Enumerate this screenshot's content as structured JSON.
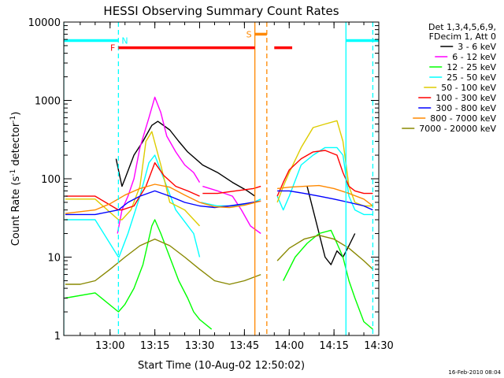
{
  "chart_data": {
    "type": "line",
    "title": "HESSI Observing Summary Count Rates",
    "xlabel": "Start Time (10-Aug-02 12:50:02)",
    "ylabel_main": "Count Rate (s",
    "ylabel_sup1": "-1",
    "ylabel_mid": " detector",
    "ylabel_sup2": "-1",
    "ylabel_end": ")",
    "y_scale": "log",
    "ylim": [
      1,
      10000
    ],
    "xlim_minutes": [
      -5.5,
      100
    ],
    "x_ticks": [
      {
        "label": "13:00",
        "minutes": 10
      },
      {
        "label": "13:15",
        "minutes": 25
      },
      {
        "label": "13:30",
        "minutes": 40
      },
      {
        "label": "13:45",
        "minutes": 55
      },
      {
        "label": "14:00",
        "minutes": 70
      },
      {
        "label": "14:15",
        "minutes": 85
      },
      {
        "label": "14:30",
        "minutes": 100
      }
    ],
    "y_ticks": [
      {
        "label": "1",
        "value": 1
      },
      {
        "label": "10",
        "value": 10
      },
      {
        "label": "100",
        "value": 100
      },
      {
        "label": "1000",
        "value": 1000
      },
      {
        "label": "10000",
        "value": 10000
      }
    ],
    "legend": {
      "placement": "right",
      "header1": "Det 1,3,4,5,6,9,",
      "header2": "FDecim 1, Att 0"
    },
    "series": [
      {
        "name": "3 - 6 keV",
        "color": "#000000",
        "x": [
          12,
          13,
          14,
          15,
          18,
          21,
          24,
          26,
          30,
          33,
          36,
          41,
          46,
          51,
          56,
          58.5
        ],
        "y": [
          180,
          120,
          80,
          100,
          200,
          300,
          480,
          540,
          420,
          300,
          220,
          150,
          120,
          90,
          70,
          60
        ]
      },
      {
        "name": "3 - 6 keV",
        "color": "#000000",
        "x": [
          76,
          78,
          80,
          82,
          84,
          86,
          88,
          90,
          92
        ],
        "y": [
          80,
          40,
          20,
          10,
          8,
          12,
          10,
          14,
          20
        ]
      },
      {
        "name": "6 - 12 keV",
        "color": "#ff00ff",
        "x": [
          12.5,
          14,
          16,
          18,
          20,
          23,
          25,
          27,
          29,
          32,
          35,
          38,
          40
        ],
        "y": [
          20,
          40,
          60,
          100,
          250,
          600,
          1100,
          700,
          350,
          220,
          150,
          120,
          90
        ]
      },
      {
        "name": "6 - 12 keV",
        "color": "#ff00ff",
        "x": [
          41,
          46,
          51,
          54,
          57,
          60.5
        ],
        "y": [
          80,
          70,
          60,
          40,
          25,
          20
        ]
      },
      {
        "name": "12 - 25 keV",
        "color": "#00ff00",
        "x": [
          -5,
          5,
          12.8,
          15,
          18,
          21,
          24,
          25,
          27,
          30,
          33,
          36,
          38,
          40,
          44
        ],
        "y": [
          3,
          3.5,
          2,
          2.5,
          4,
          8,
          25,
          30,
          20,
          10,
          5,
          3,
          2,
          1.6,
          1.2
        ]
      },
      {
        "name": "12 - 25 keV",
        "color": "#00ff00",
        "x": [
          68,
          72,
          76,
          80,
          84,
          86,
          88,
          90,
          92,
          95,
          98
        ],
        "y": [
          5,
          10,
          15,
          20,
          22,
          15,
          10,
          5,
          3,
          1.5,
          1.2
        ]
      },
      {
        "name": "25 - 50 keV",
        "color": "#00ffff",
        "x": [
          -5,
          5,
          12.8,
          13,
          16,
          20,
          23,
          25,
          28,
          32,
          38,
          40
        ],
        "y": [
          30,
          30,
          10,
          10,
          20,
          60,
          160,
          200,
          100,
          40,
          20,
          10
        ]
      },
      {
        "name": "25 - 50 keV",
        "color": "#00ffff",
        "x": [
          40.5,
          46,
          52,
          58,
          60.5
        ],
        "y": [
          50,
          45,
          45,
          50,
          55
        ]
      },
      {
        "name": "25 - 50 keV",
        "color": "#00ffff",
        "x": [
          66,
          68,
          70,
          74,
          78,
          82,
          86,
          88,
          90,
          92,
          95,
          98
        ],
        "y": [
          60,
          40,
          60,
          150,
          200,
          250,
          250,
          200,
          60,
          40,
          35,
          35
        ]
      },
      {
        "name": "50 - 100 keV",
        "color": "#ddcc00",
        "x": [
          -5,
          5,
          12.8,
          14,
          17,
          20,
          22,
          24,
          27,
          30,
          35,
          40
        ],
        "y": [
          55,
          55,
          30,
          30,
          40,
          80,
          300,
          400,
          150,
          50,
          40,
          25
        ]
      },
      {
        "name": "50 - 100 keV",
        "color": "#ddcc00",
        "x": [
          66,
          68,
          70,
          74,
          78,
          82,
          86,
          88,
          90,
          92,
          95,
          98
        ],
        "y": [
          50,
          80,
          120,
          250,
          450,
          500,
          550,
          300,
          80,
          50,
          45,
          45
        ]
      },
      {
        "name": "100 - 300 keV",
        "color": "#ff0000",
        "x": [
          -5,
          5,
          12.8,
          14,
          18,
          22,
          25,
          28,
          32,
          36,
          40
        ],
        "y": [
          60,
          60,
          40,
          40,
          45,
          80,
          160,
          110,
          80,
          70,
          60
        ]
      },
      {
        "name": "100 - 300 keV",
        "color": "#ff0000",
        "x": [
          41,
          46,
          52,
          58,
          60.5
        ],
        "y": [
          65,
          65,
          70,
          75,
          80
        ]
      },
      {
        "name": "100 - 300 keV",
        "color": "#ff0000",
        "x": [
          66,
          68,
          70,
          74,
          78,
          82,
          86,
          88,
          90,
          92,
          95,
          98
        ],
        "y": [
          60,
          90,
          130,
          180,
          220,
          230,
          200,
          120,
          80,
          70,
          65,
          65
        ]
      },
      {
        "name": "300 - 800 keV",
        "color": "#0000ff",
        "x": [
          -5,
          5,
          12.8,
          16,
          20,
          25,
          30,
          35,
          40,
          45,
          50,
          55,
          60.5
        ],
        "y": [
          35,
          35,
          40,
          50,
          60,
          70,
          60,
          50,
          45,
          43,
          45,
          48,
          52
        ]
      },
      {
        "name": "300 - 800 keV",
        "color": "#0000ff",
        "x": [
          66,
          70,
          75,
          80,
          85,
          90,
          95,
          98
        ],
        "y": [
          70,
          70,
          65,
          60,
          55,
          50,
          45,
          40
        ]
      },
      {
        "name": "800 - 7000 keV",
        "color": "#ff8800",
        "x": [
          -5,
          0,
          5,
          10,
          15,
          20,
          25,
          30,
          35,
          40,
          45,
          50,
          55,
          60.5
        ],
        "y": [
          36,
          38,
          40,
          48,
          62,
          75,
          85,
          78,
          62,
          50,
          44,
          43,
          46,
          52
        ]
      },
      {
        "name": "800 - 7000 keV",
        "color": "#ff8800",
        "x": [
          66,
          70,
          75,
          80,
          85,
          90,
          95,
          98
        ],
        "y": [
          75,
          78,
          80,
          82,
          75,
          65,
          55,
          45
        ]
      },
      {
        "name": "7000 - 20000 keV",
        "color": "#888800",
        "x": [
          -5,
          0,
          5,
          10,
          15,
          20,
          25,
          30,
          35,
          40,
          45,
          50,
          55,
          60.5
        ],
        "y": [
          4.5,
          4.5,
          5,
          7,
          10,
          14,
          17,
          14,
          10,
          7,
          5,
          4.5,
          5,
          6
        ]
      },
      {
        "name": "7000 - 20000 keV",
        "color": "#888800",
        "x": [
          66,
          70,
          75,
          80,
          85,
          90,
          95,
          98
        ],
        "y": [
          9,
          13,
          17,
          19,
          17,
          13,
          9,
          7
        ]
      }
    ],
    "legend_entries": [
      {
        "name": "3 - 6 keV",
        "color": "#000000"
      },
      {
        "name": "6 - 12 keV",
        "color": "#ff00ff"
      },
      {
        "name": "12 - 25 keV",
        "color": "#00ff00"
      },
      {
        "name": "25 - 50 keV",
        "color": "#00ffff"
      },
      {
        "name": "50 - 100 keV",
        "color": "#ddcc00"
      },
      {
        "name": "100 - 300 keV",
        "color": "#ff0000"
      },
      {
        "name": "300 - 800 keV",
        "color": "#0000ff"
      },
      {
        "name": "800 - 7000 keV",
        "color": "#ff8800"
      },
      {
        "name": "7000 - 20000 keV",
        "color": "#888800"
      }
    ],
    "flags": [
      {
        "label": "N",
        "color": "#00ffff",
        "segments": [
          [
            -5.5,
            12.8
          ],
          [
            89,
            100
          ]
        ],
        "level": 5800
      },
      {
        "label": "F",
        "color": "#ff0000",
        "segments": [
          [
            12.8,
            58.5
          ],
          [
            65,
            71
          ]
        ],
        "level": 4700
      },
      {
        "label": "S",
        "color": "#ff8800",
        "segments": [
          [
            58.5,
            62.5
          ]
        ],
        "level": 7000
      }
    ],
    "vlines": [
      {
        "minutes": -5.5,
        "color": "#00ffff",
        "style": "solid"
      },
      {
        "minutes": 12.8,
        "color": "#00ffff",
        "style": "dashed"
      },
      {
        "minutes": 58.5,
        "color": "#ff8800",
        "style": "solid"
      },
      {
        "minutes": 62.5,
        "color": "#ff8800",
        "style": "dashed"
      },
      {
        "minutes": 89,
        "color": "#00ffff",
        "style": "solid"
      },
      {
        "minutes": 98,
        "color": "#00ffff",
        "style": "dashed"
      }
    ],
    "footer_timestamp": "16-Feb-2010 08:04"
  }
}
